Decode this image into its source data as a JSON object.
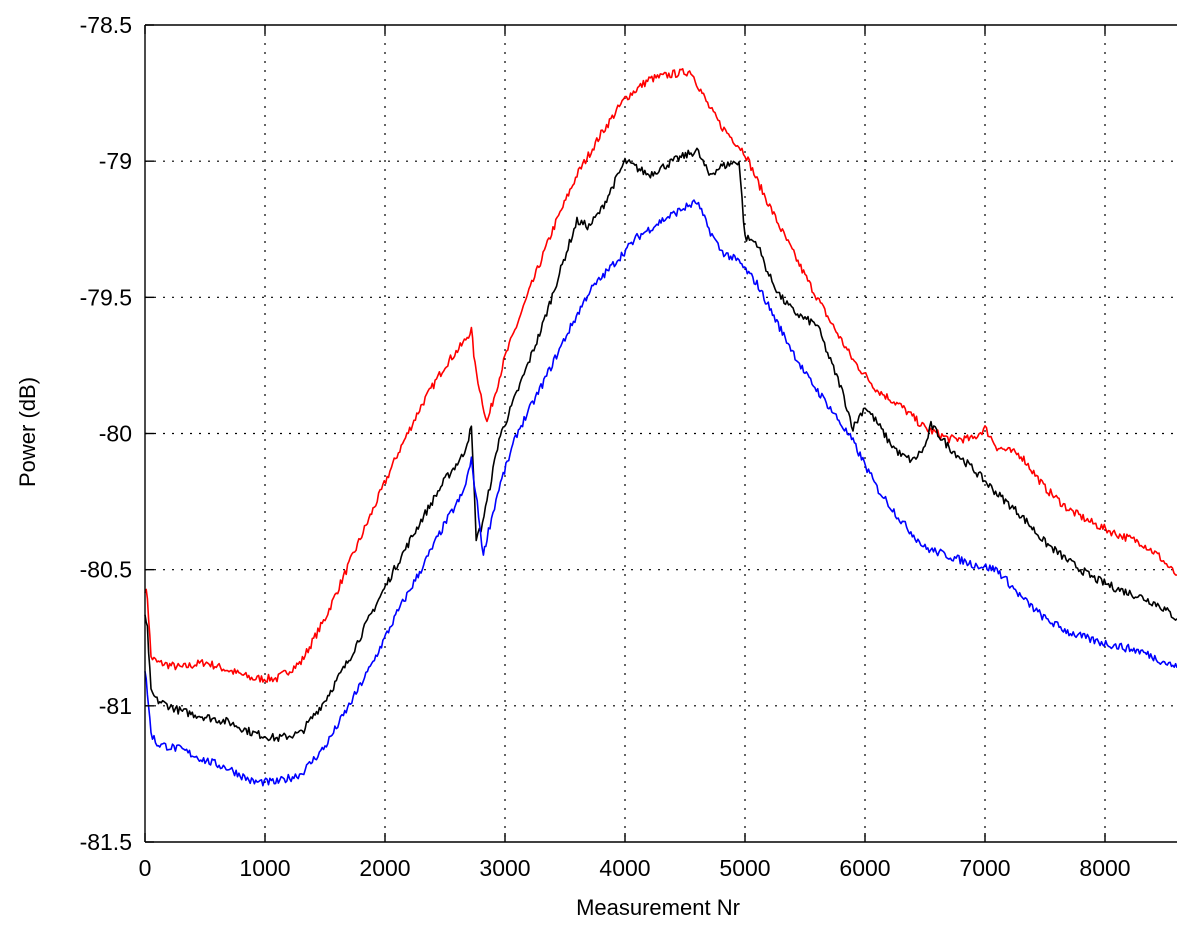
{
  "chart_data": {
    "type": "line",
    "title": "",
    "xlabel": "Measurement Nr",
    "ylabel": "Power (dB)",
    "xlim": [
      0,
      8600
    ],
    "ylim": [
      -81.5,
      -78.5
    ],
    "grid": true,
    "x_ticks": [
      0,
      1000,
      2000,
      3000,
      4000,
      5000,
      6000,
      7000,
      8000
    ],
    "y_ticks": [
      -78.5,
      -79,
      -79.5,
      -80,
      -80.5,
      -81,
      -81.5
    ],
    "x_tick_labels": [
      "0",
      "1000",
      "2000",
      "3000",
      "4000",
      "5000",
      "6000",
      "7000",
      "8000"
    ],
    "y_tick_labels": [
      "-78.5",
      "-79",
      "-79.5",
      "-80",
      "-80.5",
      "-81",
      "-81.5"
    ],
    "series": [
      {
        "color": "#ff0000",
        "x": [
          0,
          20,
          50,
          100,
          300,
          500,
          700,
          900,
          1100,
          1300,
          1500,
          1700,
          1900,
          2100,
          2300,
          2500,
          2650,
          2720,
          2750,
          2800,
          2850,
          3000,
          3200,
          3400,
          3600,
          3800,
          4000,
          4200,
          4400,
          4550,
          4700,
          4800,
          4900,
          5000,
          5100,
          5300,
          5500,
          5700,
          5900,
          6100,
          6300,
          6500,
          6700,
          6900,
          7000,
          7100,
          7300,
          7500,
          7700,
          7900,
          8100,
          8300,
          8450,
          8550,
          8600
        ],
        "y": [
          -80.57,
          -80.6,
          -80.82,
          -80.84,
          -80.86,
          -80.84,
          -80.87,
          -80.9,
          -80.9,
          -80.84,
          -80.68,
          -80.48,
          -80.28,
          -80.08,
          -79.9,
          -79.75,
          -79.67,
          -79.62,
          -79.75,
          -79.86,
          -79.96,
          -79.72,
          -79.48,
          -79.25,
          -79.05,
          -78.9,
          -78.77,
          -78.7,
          -78.68,
          -78.67,
          -78.8,
          -78.87,
          -78.92,
          -78.97,
          -79.07,
          -79.25,
          -79.42,
          -79.58,
          -79.73,
          -79.84,
          -79.9,
          -79.98,
          -80.02,
          -80.02,
          -79.98,
          -80.05,
          -80.08,
          -80.2,
          -80.28,
          -80.33,
          -80.37,
          -80.4,
          -80.45,
          -80.5,
          -80.52
        ]
      },
      {
        "color": "#000000",
        "x": [
          0,
          20,
          50,
          100,
          300,
          500,
          700,
          900,
          1100,
          1300,
          1500,
          1700,
          1900,
          2100,
          2300,
          2500,
          2650,
          2720,
          2760,
          2800,
          2850,
          2950,
          3100,
          3300,
          3500,
          3600,
          3700,
          3800,
          4000,
          4200,
          4400,
          4550,
          4600,
          4700,
          4800,
          4950,
          5000,
          5100,
          5200,
          5300,
          5400,
          5500,
          5600,
          5700,
          5800,
          5900,
          6000,
          6100,
          6200,
          6300,
          6400,
          6500,
          6550,
          6700,
          6900,
          7100,
          7300,
          7500,
          7700,
          7900,
          8100,
          8300,
          8450,
          8600
        ],
        "y": [
          -80.68,
          -80.72,
          -80.95,
          -80.98,
          -81.02,
          -81.04,
          -81.06,
          -81.1,
          -81.12,
          -81.1,
          -80.98,
          -80.83,
          -80.65,
          -80.48,
          -80.32,
          -80.17,
          -80.08,
          -79.98,
          -80.38,
          -80.35,
          -80.25,
          -80.02,
          -79.85,
          -79.62,
          -79.35,
          -79.22,
          -79.24,
          -79.18,
          -79.0,
          -79.05,
          -79.0,
          -78.97,
          -78.96,
          -79.05,
          -79.02,
          -79.0,
          -79.28,
          -79.3,
          -79.42,
          -79.5,
          -79.55,
          -79.58,
          -79.6,
          -79.72,
          -79.83,
          -79.98,
          -79.9,
          -79.96,
          -80.03,
          -80.08,
          -80.1,
          -80.05,
          -79.97,
          -80.05,
          -80.13,
          -80.22,
          -80.3,
          -80.4,
          -80.47,
          -80.53,
          -80.57,
          -80.6,
          -80.63,
          -80.68
        ]
      },
      {
        "color": "#0000ff",
        "x": [
          0,
          20,
          50,
          100,
          300,
          500,
          700,
          900,
          1100,
          1300,
          1500,
          1700,
          1900,
          2100,
          2300,
          2500,
          2650,
          2720,
          2780,
          2820,
          2850,
          2950,
          3100,
          3300,
          3500,
          3700,
          3900,
          4100,
          4300,
          4500,
          4600,
          4700,
          4800,
          4950,
          5100,
          5300,
          5500,
          5700,
          5900,
          6100,
          6300,
          6500,
          6700,
          6900,
          7100,
          7300,
          7500,
          7700,
          7900,
          8100,
          8300,
          8450,
          8600
        ],
        "y": [
          -80.87,
          -80.95,
          -81.1,
          -81.14,
          -81.16,
          -81.2,
          -81.23,
          -81.28,
          -81.28,
          -81.25,
          -81.15,
          -81.0,
          -80.84,
          -80.66,
          -80.5,
          -80.33,
          -80.22,
          -80.1,
          -80.3,
          -80.45,
          -80.38,
          -80.2,
          -80.0,
          -79.83,
          -79.65,
          -79.48,
          -79.38,
          -79.28,
          -79.22,
          -79.17,
          -79.15,
          -79.25,
          -79.33,
          -79.37,
          -79.45,
          -79.62,
          -79.78,
          -79.9,
          -80.03,
          -80.2,
          -80.32,
          -80.42,
          -80.45,
          -80.48,
          -80.5,
          -80.6,
          -80.68,
          -80.73,
          -80.76,
          -80.78,
          -80.8,
          -80.83,
          -80.86
        ]
      }
    ]
  }
}
